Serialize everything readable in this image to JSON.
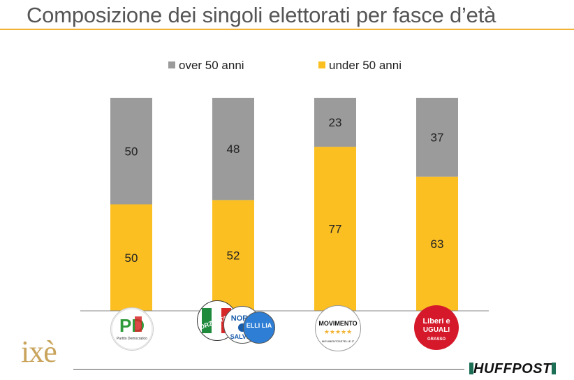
{
  "title": "Composizione dei singoli elettorati per fasce d’età",
  "brand": {
    "left_logo": "ixè",
    "right_logo": "HUFFPOST"
  },
  "colors": {
    "over": "#9b9b9b",
    "under": "#fbbf22",
    "accent": "#f2b233"
  },
  "chart_data": {
    "type": "bar",
    "stacked": true,
    "categories": [
      "Partito Democratico",
      "Centrodestra (Forza Italia, Lega, Fratelli d'Italia)",
      "Movimento 5 Stelle",
      "Liberi e Uguali"
    ],
    "series": [
      {
        "name": "over 50 anni",
        "values": [
          50,
          48,
          23,
          37
        ],
        "color": "#9b9b9b"
      },
      {
        "name": "under 50 anni",
        "values": [
          50,
          52,
          77,
          63
        ],
        "color": "#fbbf22"
      }
    ],
    "ylim": [
      0,
      100
    ],
    "legend": "top-center",
    "grid": false
  },
  "logos": {
    "pd": {
      "text": "PD",
      "caption": "Partito Democratico"
    },
    "fi": {
      "text": "FORZA ITALIA"
    },
    "lega": {
      "text": "NORD",
      "caption": "SALVINI"
    },
    "fdi": {
      "text": "ELLI LIA"
    },
    "m5s": {
      "text": "MOVIMENTO",
      "stars": "★★★★★",
      "caption": "MOVIMENTO5STELLE.IT"
    },
    "leu": {
      "line1": "Liberi e",
      "line2": "UGUALI",
      "caption": "GRASSO"
    }
  }
}
